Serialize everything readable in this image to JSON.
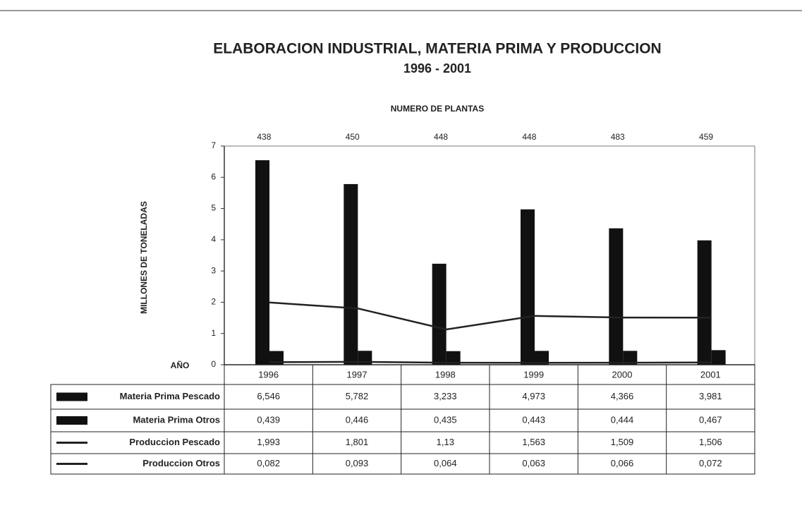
{
  "chart_data": {
    "type": "bar",
    "title": "ELABORACION INDUSTRIAL, MATERIA PRIMA Y PRODUCCION",
    "subtitle": "1996 - 2001",
    "top_label": "NUMERO DE PLANTAS",
    "plants": [
      438,
      450,
      448,
      448,
      483,
      459
    ],
    "ylabel": "MILLONES DE TONELADAS",
    "xlabel": "AÑO",
    "categories": [
      "1996",
      "1997",
      "1998",
      "1999",
      "2000",
      "2001"
    ],
    "ylim": [
      0,
      7
    ],
    "yticks": [
      0,
      1,
      2,
      3,
      4,
      5,
      6,
      7
    ],
    "series": [
      {
        "name": "Materia Prima Pescado",
        "type": "bar",
        "color": "#111111",
        "values": [
          6.546,
          5.782,
          3.233,
          4.973,
          4.366,
          3.981
        ],
        "value_labels": [
          "6,546",
          "5,782",
          "3,233",
          "4,973",
          "4,366",
          "3,981"
        ]
      },
      {
        "name": "Materia Prima Otros",
        "type": "bar",
        "color": "#111111",
        "values": [
          0.439,
          0.446,
          0.435,
          0.443,
          0.444,
          0.467
        ],
        "value_labels": [
          "0,439",
          "0,446",
          "0,435",
          "0,443",
          "0,444",
          "0,467"
        ]
      },
      {
        "name": "Produccion Pescado",
        "type": "line",
        "color": "#222222",
        "values": [
          1.993,
          1.801,
          1.13,
          1.563,
          1.509,
          1.506
        ],
        "value_labels": [
          "1,993",
          "1,801",
          "1,13",
          "1,563",
          "1,509",
          "1,506"
        ]
      },
      {
        "name": "Produccion Otros",
        "type": "line",
        "color": "#222222",
        "values": [
          0.082,
          0.093,
          0.064,
          0.063,
          0.066,
          0.072
        ],
        "value_labels": [
          "0,082",
          "0,093",
          "0,064",
          "0,063",
          "0,066",
          "0,072"
        ]
      }
    ]
  }
}
